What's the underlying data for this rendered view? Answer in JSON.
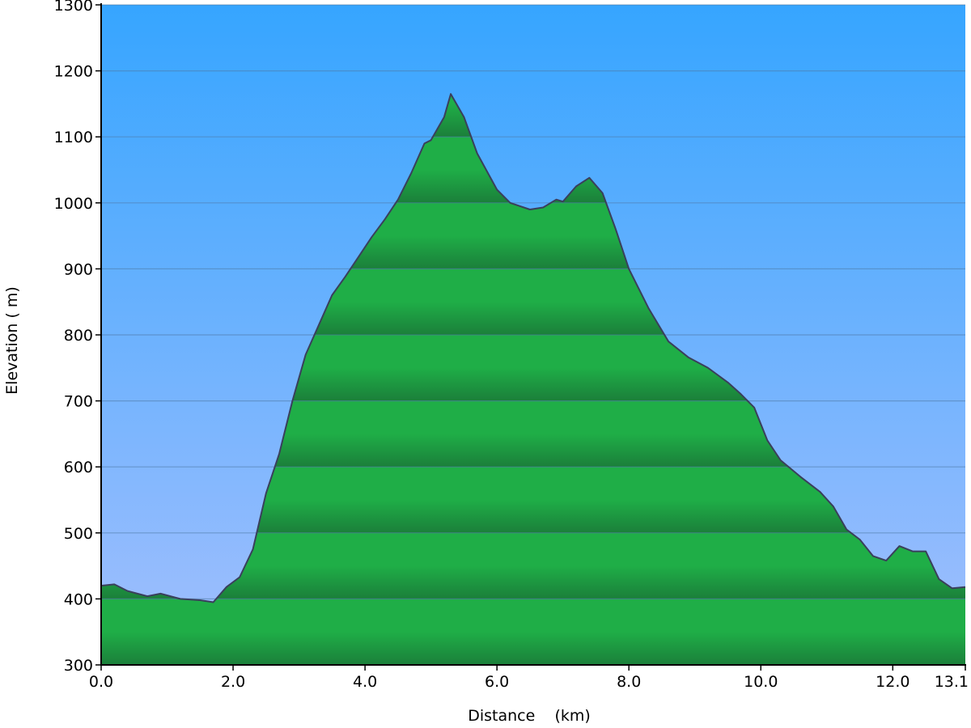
{
  "chart_data": {
    "type": "area",
    "title": "",
    "xlabel": "Distance    (km)",
    "ylabel": "Elevation ( m)",
    "xlim": [
      0,
      13.1
    ],
    "ylim": [
      300,
      1300
    ],
    "x_ticks": [
      0,
      2,
      4,
      6,
      8,
      10,
      12,
      13.1
    ],
    "x_tick_labels": [
      "0.0",
      "2.0",
      "4.0",
      "6.0",
      "8.0",
      "10.0",
      "12.0",
      "13.1"
    ],
    "y_ticks": [
      300,
      400,
      500,
      600,
      700,
      800,
      900,
      1000,
      1100,
      1200,
      1300
    ],
    "y_tick_labels": [
      "300",
      "400",
      "500",
      "600",
      "700",
      "800",
      "900",
      "1000",
      "1100",
      "1200",
      "1300"
    ],
    "grid": "horizontal",
    "series": [
      {
        "x": [
          0.0,
          0.2,
          0.4,
          0.7,
          0.9,
          1.2,
          1.5,
          1.7,
          1.9,
          2.1,
          2.3,
          2.5,
          2.7,
          2.9,
          3.1,
          3.3,
          3.5,
          3.7,
          3.9,
          4.1,
          4.3,
          4.5,
          4.7,
          4.9,
          5.0,
          5.2,
          5.3,
          5.5,
          5.7,
          6.0,
          6.2,
          6.5,
          6.7,
          6.9,
          7.0,
          7.2,
          7.4,
          7.6,
          7.8,
          8.0,
          8.3,
          8.6,
          8.9,
          9.2,
          9.5,
          9.7,
          9.9,
          10.1,
          10.3,
          10.6,
          10.9,
          11.1,
          11.3,
          11.5,
          11.7,
          11.9,
          12.1,
          12.3,
          12.5,
          12.7,
          12.9,
          13.1
        ],
        "y": [
          420,
          422,
          412,
          404,
          408,
          400,
          398,
          395,
          418,
          433,
          475,
          560,
          620,
          700,
          770,
          815,
          860,
          888,
          918,
          948,
          975,
          1005,
          1045,
          1090,
          1095,
          1130,
          1165,
          1130,
          1075,
          1020,
          1000,
          990,
          993,
          1005,
          1002,
          1025,
          1038,
          1015,
          960,
          900,
          840,
          790,
          766,
          750,
          728,
          710,
          690,
          640,
          610,
          585,
          562,
          540,
          505,
          490,
          465,
          458,
          480,
          472,
          472,
          430,
          416,
          418
        ]
      }
    ],
    "colors": {
      "sky_top": "#36a5ff",
      "sky_bottom": "#a3bffd",
      "fill_light": "#1fae47",
      "fill_dark": "#1b7f3a",
      "outline": "#3a3f5c",
      "grid": "#4f7aa6"
    }
  }
}
